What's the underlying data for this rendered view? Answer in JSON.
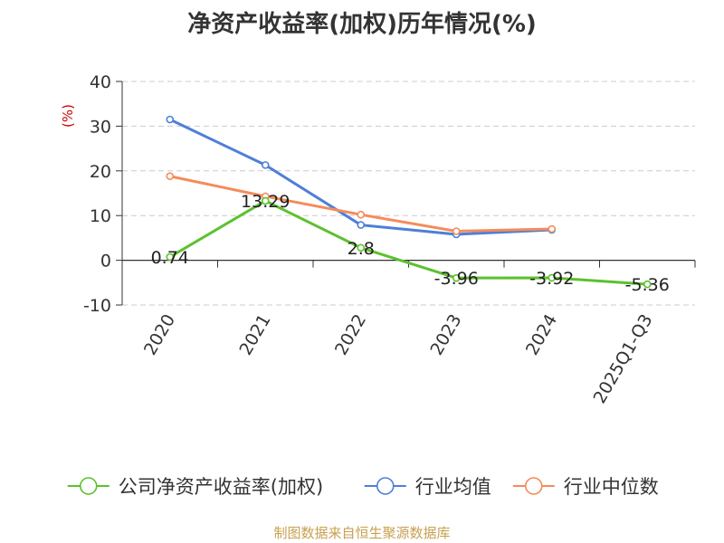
{
  "chart_data": {
    "type": "line",
    "title": "净资产收益率(加权)历年情况(%)",
    "ylabel": "(%)",
    "xlabel": "",
    "categories": [
      "2020",
      "2021",
      "2022",
      "2023",
      "2024",
      "2025Q1-Q3"
    ],
    "ylim": [
      -10,
      40
    ],
    "yticks": [
      -10,
      0,
      10,
      20,
      30,
      40
    ],
    "grid": true,
    "legend_position": "bottom",
    "series": [
      {
        "name": "公司净资产收益率(加权)",
        "color": "#5dc12e",
        "values": [
          0.74,
          13.29,
          2.8,
          -3.96,
          -3.92,
          -5.36
        ],
        "labels": [
          "0.74",
          "13.29",
          "2.8",
          "-3.96",
          "-3.92",
          "-5.36"
        ]
      },
      {
        "name": "行业均值",
        "color": "#4e7fd8",
        "values": [
          31.5,
          21.3,
          7.9,
          5.8,
          6.8,
          null
        ]
      },
      {
        "name": "行业中位数",
        "color": "#f48c5a",
        "values": [
          18.8,
          14.3,
          10.2,
          6.5,
          7.0,
          null
        ]
      }
    ]
  },
  "footer": "制图数据来自恒生聚源数据库"
}
